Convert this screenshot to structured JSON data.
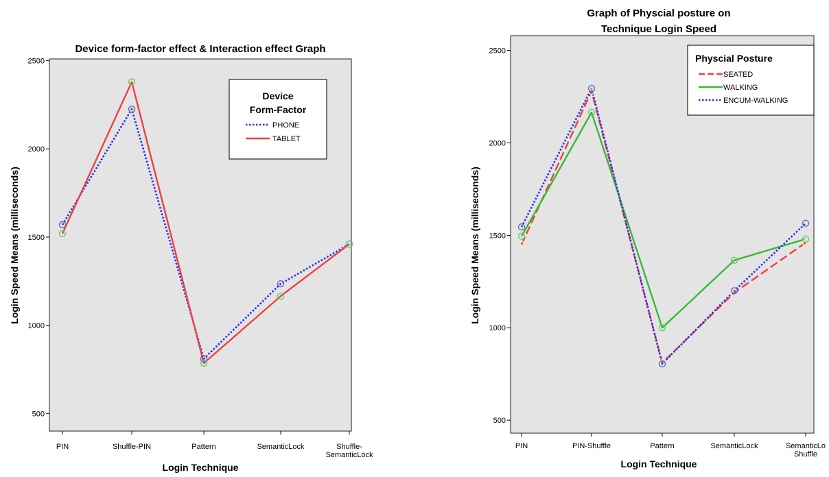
{
  "colors": {
    "plot_bg": "#e4e4e4",
    "phone": "#2b2bf0",
    "tablet": "#ee4040",
    "seated": "#ee4040",
    "walking": "#33bb33",
    "encum_walking": "#2b2bf0",
    "marker_green": "#66cc66",
    "marker_blue": "#6666cc",
    "marker_pale": "#f0ecc0"
  },
  "chart_data": [
    {
      "type": "line",
      "title": "Device form-factor effect & Interaction effect Graph",
      "xlabel": "Login Technique",
      "ylabel": "Login Speed Means (milliseconds)",
      "categories": [
        "PIN",
        "Shuffle-PIN",
        "Pattern",
        "SemanticLock",
        "Shuffle-SemanticLock"
      ],
      "category_labels": [
        [
          "PIN"
        ],
        [
          "Shuffle-PIN"
        ],
        [
          "Pattern"
        ],
        [
          "SemanticLock"
        ],
        [
          "Shuffle-",
          "SemanticLock"
        ]
      ],
      "ylim": [
        400,
        2510
      ],
      "yticks": [
        500,
        1000,
        1500,
        2000,
        2500
      ],
      "legend": {
        "title": [
          "Device",
          "Form-Factor"
        ],
        "position": "top-right"
      },
      "series": [
        {
          "name": "PHONE",
          "values": [
            1570,
            2225,
            810,
            1235,
            1460
          ],
          "style": "dotted",
          "color_key": "phone",
          "marker_key": "marker_blue"
        },
        {
          "name": "TABLET",
          "values": [
            1520,
            2380,
            785,
            1165,
            1460
          ],
          "style": "solid",
          "color_key": "tablet",
          "marker_key": "marker_green"
        }
      ]
    },
    {
      "type": "line",
      "title": "Graph of Physcial posture on Technique Login Speed",
      "title_lines": [
        "Graph of Physcial posture on",
        "Technique Login Speed"
      ],
      "xlabel": "Login Technique",
      "ylabel": "Login Speed Means (milliseconds)",
      "categories": [
        "PIN",
        "PIN-Shuffle",
        "Pattern",
        "SemanticLock",
        "SemanticLock Shuffle"
      ],
      "category_labels": [
        [
          "PIN"
        ],
        [
          "PIN-Shuffle"
        ],
        [
          "Pattern"
        ],
        [
          "SemanticLock"
        ],
        [
          "SemanticLo",
          "Shuffle"
        ]
      ],
      "ylim": [
        430,
        2580
      ],
      "yticks": [
        500,
        1000,
        1500,
        2000,
        2500
      ],
      "legend": {
        "title": [
          "Physcial Posture"
        ],
        "position": "top-right"
      },
      "series": [
        {
          "name": "SEATED",
          "values": [
            1450,
            2280,
            810,
            1190,
            1460
          ],
          "style": "dashed",
          "color_key": "seated",
          "marker_key": "marker_pale"
        },
        {
          "name": "WALKING",
          "values": [
            1495,
            2165,
            1000,
            1365,
            1480
          ],
          "style": "solid",
          "color_key": "walking",
          "marker_key": "marker_green"
        },
        {
          "name": "ENCUM-WALKING",
          "values": [
            1545,
            2295,
            805,
            1200,
            1565
          ],
          "style": "dotted",
          "color_key": "encum_walking",
          "marker_key": "marker_blue"
        }
      ]
    }
  ]
}
